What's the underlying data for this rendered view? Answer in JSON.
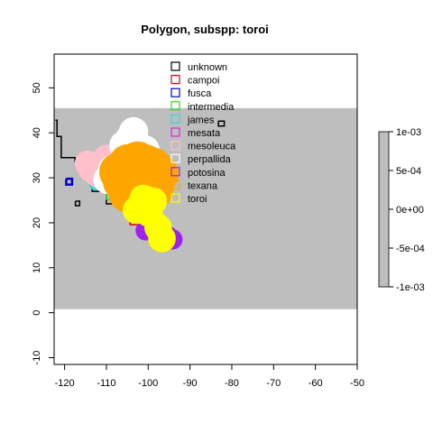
{
  "chart_data": {
    "type": "map",
    "title": "Polygon, subspp: toroi",
    "xlabel": "",
    "ylabel": "",
    "xlim": [
      -122.5,
      -50
    ],
    "ylim": [
      -11.5,
      57.5
    ],
    "x_ticks": [
      -120,
      -110,
      -100,
      -90,
      -80,
      -70,
      -60,
      -50
    ],
    "y_ticks": [
      -10,
      0,
      10,
      20,
      30,
      40,
      50
    ],
    "raster_extent": {
      "x": [
        -122.5,
        -50
      ],
      "y": [
        0.8,
        45.5
      ]
    },
    "raster_color": "#bebebe",
    "legend_position": "top-center",
    "legend": [
      {
        "name": "unknown",
        "color": "#000000"
      },
      {
        "name": "campoi",
        "color": "#df0000"
      },
      {
        "name": "fusca",
        "color": "#0000cc"
      },
      {
        "name": "intermedia",
        "color": "#22dd22"
      },
      {
        "name": "james",
        "color": "#22dddd"
      },
      {
        "name": "mesata",
        "color": "#dd22dd"
      },
      {
        "name": "mesoleuca",
        "color": "#ffc0cb"
      },
      {
        "name": "perpallida",
        "color": "#ffffff"
      },
      {
        "name": "potosina",
        "color": "#a020f0"
      },
      {
        "name": "texana",
        "color": "#ffa500"
      },
      {
        "name": "toroi",
        "color": "#ffff00"
      }
    ],
    "series": [
      {
        "name": "unknown",
        "type": "outline",
        "points": [
          [
            -122.2,
            42.8
          ],
          [
            -121.8,
            42.8
          ],
          [
            -121.8,
            39.2
          ],
          [
            -120.8,
            39.2
          ],
          [
            -120.8,
            34.5
          ],
          [
            -117.5,
            34.5
          ],
          [
            -117.5,
            33.6
          ],
          [
            -113.4,
            33.6
          ],
          [
            -113.4,
            27
          ],
          [
            -110,
            27
          ],
          [
            -110,
            24.2
          ],
          [
            -107,
            24.2
          ],
          [
            -107,
            23
          ],
          [
            -100,
            23
          ],
          [
            -100,
            21.5
          ],
          [
            -99.4,
            21.5
          ],
          [
            -99.4,
            20.8
          ],
          [
            -98.6,
            20.8
          ],
          [
            -98.6,
            21.8
          ],
          [
            -97.8,
            21.8
          ],
          [
            -97.8,
            22.8
          ],
          [
            -98.6,
            22.8
          ],
          [
            -98.6,
            23.6
          ],
          [
            -99.4,
            23.6
          ],
          [
            -99.4,
            25
          ],
          [
            -100,
            25
          ]
        ]
      },
      {
        "name": "unknown-island",
        "type": "outline",
        "points": [
          [
            -117.4,
            24.8
          ],
          [
            -116.4,
            24.8
          ],
          [
            -116.4,
            23.8
          ],
          [
            -117.4,
            23.8
          ],
          [
            -117.4,
            24.8
          ]
        ]
      },
      {
        "name": "unknown-north",
        "type": "outline",
        "points": [
          [
            -83.2,
            42.6
          ],
          [
            -81.8,
            42.6
          ],
          [
            -81.8,
            41.5
          ],
          [
            -83.2,
            41.5
          ],
          [
            -83.2,
            42.6
          ]
        ]
      },
      {
        "name": "campoi",
        "type": "outline",
        "points": [
          [
            -104.3,
            23
          ],
          [
            -104.3,
            19.6
          ],
          [
            -101,
            19.6
          ],
          [
            -101,
            21
          ]
        ]
      },
      {
        "name": "fusca",
        "type": "outline",
        "points": [
          [
            -119.6,
            29.8
          ],
          [
            -118.2,
            29.8
          ],
          [
            -118.2,
            28.5
          ],
          [
            -119.6,
            28.5
          ],
          [
            -119.6,
            29.8
          ]
        ]
      },
      {
        "name": "intermedia",
        "type": "outline",
        "points": [
          [
            -114.8,
            34.5
          ],
          [
            -114.8,
            35.6
          ],
          [
            -113.2,
            35.6
          ]
        ]
      },
      {
        "name": "intermedia-south",
        "type": "outline",
        "points": [
          [
            -110,
            27.5
          ],
          [
            -110,
            25.2
          ],
          [
            -108.4,
            25.2
          ],
          [
            -108.4,
            26.6
          ]
        ]
      },
      {
        "name": "james",
        "type": "blob",
        "points": [
          [
            -112.3,
            29
          ]
        ],
        "r": 0.9
      },
      {
        "name": "mesata",
        "type": "outline",
        "points": [
          [
            -105,
            33.5
          ],
          [
            -104.2,
            33.5
          ],
          [
            -104.2,
            32.8
          ]
        ]
      },
      {
        "name": "mesoleuca",
        "type": "blob",
        "points": [
          [
            -114.5,
            33.2
          ],
          [
            -113.7,
            31.9
          ],
          [
            -112.2,
            30.8
          ],
          [
            -111,
            30.1
          ],
          [
            -109.2,
            31.5
          ],
          [
            -107.5,
            30.7
          ],
          [
            -106.2,
            31.5
          ],
          [
            -110,
            34.5
          ]
        ],
        "r": 1.4
      },
      {
        "name": "perpallida",
        "type": "blob",
        "points": [
          [
            -103.5,
            40.2
          ],
          [
            -104.5,
            38.5
          ],
          [
            -105.8,
            37.2
          ],
          [
            -104,
            35.8
          ],
          [
            -102.3,
            37
          ],
          [
            -100.8,
            36.2
          ],
          [
            -109.6,
            29.6
          ],
          [
            -108.5,
            31.8
          ]
        ],
        "r": 1.6
      },
      {
        "name": "potosina",
        "type": "blob",
        "points": [
          [
            -100.6,
            18.3
          ],
          [
            -99.3,
            18.9
          ],
          [
            -94.2,
            16.3
          ],
          [
            -95.4,
            17.1
          ]
        ],
        "r": 1.1
      },
      {
        "name": "texana",
        "type": "blob",
        "points": [
          [
            -104.8,
            33.2
          ],
          [
            -102.5,
            33.8
          ],
          [
            -100.6,
            33.1
          ],
          [
            -98.8,
            32.4
          ],
          [
            -97.3,
            30.8
          ],
          [
            -99.2,
            29.3
          ],
          [
            -98.6,
            27.3
          ],
          [
            -100.8,
            26.6
          ],
          [
            -102.8,
            25.6
          ],
          [
            -104.8,
            26.5
          ],
          [
            -106.2,
            29.1
          ],
          [
            -107.1,
            31.3
          ],
          [
            -103,
            30.4
          ],
          [
            -101,
            29.5
          ]
        ],
        "r": 2.1
      },
      {
        "name": "toroi",
        "type": "blob",
        "points": [
          [
            -102.8,
            22.8
          ],
          [
            -101,
            23.5
          ],
          [
            -98.8,
            24.8
          ],
          [
            -99.8,
            22.1
          ],
          [
            -97.6,
            18.9
          ],
          [
            -96.7,
            16.5
          ],
          [
            -101.2,
            25.4
          ]
        ],
        "r": 1.5
      }
    ],
    "colorbar": {
      "ticks": [
        "1e-03",
        "5e-04",
        "0e+00",
        "-5e-04",
        "-1e-03"
      ],
      "color": "#bebebe"
    }
  }
}
